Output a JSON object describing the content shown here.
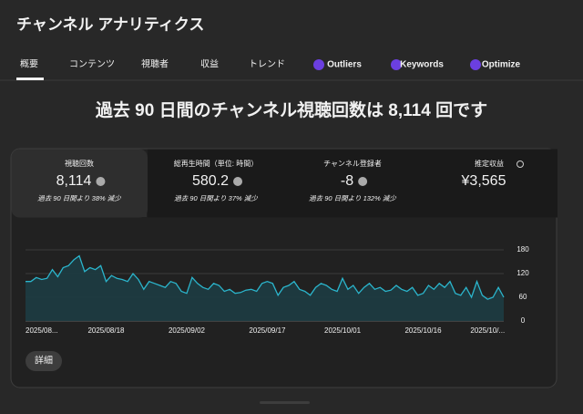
{
  "header": {
    "title": "チャンネル アナリティクス"
  },
  "tabs": [
    "概要",
    "コンテンツ",
    "視聴者",
    "収益",
    "トレンド",
    "Outliers",
    "Keywords",
    "Optimize"
  ],
  "headline": "過去 90 日間のチャンネル視聴回数は 8,114 回です",
  "metrics": [
    {
      "label": "視聴回数",
      "value": "8,114",
      "note": "過去 90 日間より 38% 減少"
    },
    {
      "label": "総再生時間（単位: 時間）",
      "value": "580.2",
      "note": "過去 90 日間より 37% 減少"
    },
    {
      "label": "チャンネル登録者",
      "value": "-8",
      "note": "過去 90 日間より 132% 減少"
    },
    {
      "label": "推定収益",
      "value": "¥3,565"
    }
  ],
  "button": "詳細",
  "chart_data": {
    "type": "line",
    "color": "#2bb5cc",
    "grid": true,
    "categories": [
      "2025/08...",
      null,
      null,
      null,
      null,
      null,
      null,
      null,
      null,
      null,
      null,
      null,
      null,
      null,
      null,
      "2025/08/18",
      null,
      null,
      null,
      null,
      null,
      null,
      null,
      null,
      null,
      null,
      null,
      null,
      null,
      null,
      "2025/09/02",
      null,
      null,
      null,
      null,
      null,
      null,
      null,
      null,
      null,
      null,
      null,
      null,
      null,
      null,
      "2025/09/17",
      null,
      null,
      null,
      null,
      null,
      null,
      null,
      null,
      null,
      null,
      null,
      null,
      null,
      "2025/10/01",
      null,
      null,
      null,
      null,
      null,
      null,
      null,
      null,
      null,
      null,
      null,
      null,
      null,
      null,
      "2025/10/16",
      null,
      null,
      null,
      null,
      null,
      null,
      null,
      null,
      null,
      null,
      null,
      "2025/10/...",
      null,
      null,
      null
    ],
    "values": [
      100,
      100,
      110,
      105,
      108,
      130,
      112,
      135,
      140,
      155,
      165,
      125,
      135,
      130,
      140,
      100,
      115,
      108,
      105,
      100,
      120,
      105,
      80,
      100,
      95,
      90,
      85,
      100,
      95,
      75,
      70,
      110,
      95,
      85,
      80,
      95,
      90,
      75,
      80,
      70,
      72,
      78,
      80,
      75,
      95,
      100,
      95,
      65,
      85,
      90,
      100,
      80,
      75,
      65,
      85,
      95,
      90,
      80,
      75,
      108,
      80,
      90,
      70,
      85,
      95,
      80,
      85,
      75,
      78,
      90,
      80,
      75,
      85,
      65,
      70,
      90,
      80,
      95,
      85,
      100,
      70,
      65,
      85,
      60,
      100,
      65,
      55,
      60,
      85,
      60
    ],
    "ylim": [
      0,
      180
    ],
    "yticks": [
      0,
      60,
      120,
      180
    ]
  }
}
